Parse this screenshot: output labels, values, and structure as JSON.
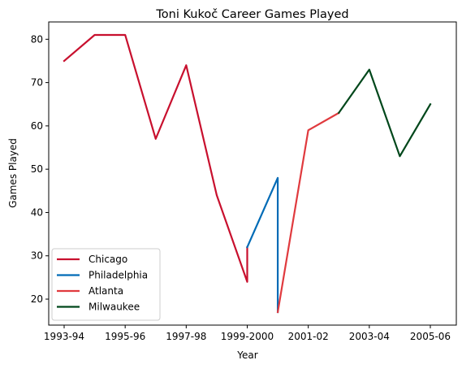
{
  "chart_data": {
    "type": "line",
    "title": "Toni Kukoč Career Games Played",
    "xlabel": "Year",
    "ylabel": "Games Played",
    "ylim": [
      14,
      84
    ],
    "yticks": [
      20,
      30,
      40,
      50,
      60,
      70,
      80
    ],
    "categories": [
      "1993-94",
      "1994-95",
      "1995-96",
      "1996-97",
      "1997-98",
      "1998-99",
      "1999-2000",
      "2000-01",
      "2001-02",
      "2002-03",
      "2003-04",
      "2004-05",
      "2005-06"
    ],
    "xtick_labels": [
      "1993-94",
      "1995-96",
      "1997-98",
      "1999-2000",
      "2001-02",
      "2003-04",
      "2005-06"
    ],
    "legend_position": "lower-left",
    "grid": false,
    "series": [
      {
        "name": "Chicago",
        "color": "#c8102e",
        "points": [
          [
            "1993-94",
            75
          ],
          [
            "1994-95",
            81
          ],
          [
            "1995-96",
            81
          ],
          [
            "1996-97",
            57
          ],
          [
            "1997-98",
            74
          ],
          [
            "1998-99",
            44
          ],
          [
            "1999-2000",
            24
          ],
          [
            "1999-2000",
            32
          ]
        ]
      },
      {
        "name": "Philadelphia",
        "color": "#006bb6",
        "points": [
          [
            "1999-2000",
            32
          ],
          [
            "2000-01",
            48
          ],
          [
            "2000-01",
            17
          ]
        ]
      },
      {
        "name": "Atlanta",
        "color": "#e03a3e",
        "points": [
          [
            "2000-01",
            17
          ],
          [
            "2001-02",
            59
          ],
          [
            "2002-03",
            63
          ]
        ]
      },
      {
        "name": "Milwaukee",
        "color": "#00471b",
        "points": [
          [
            "2002-03",
            63
          ],
          [
            "2003-04",
            73
          ],
          [
            "2004-05",
            53
          ],
          [
            "2005-06",
            65
          ]
        ]
      }
    ]
  }
}
